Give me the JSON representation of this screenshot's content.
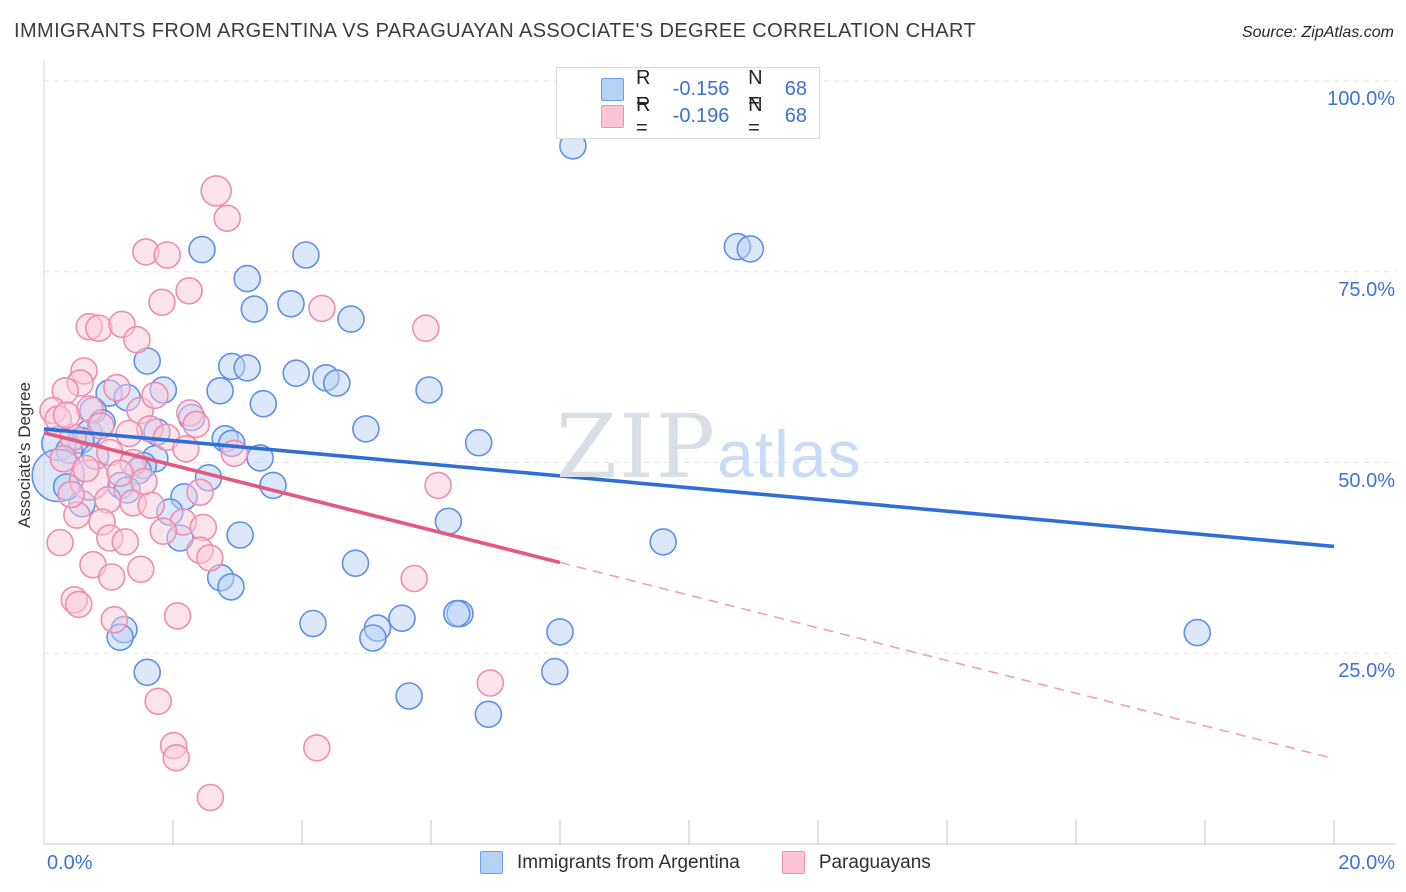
{
  "header": {
    "title": "IMMIGRANTS FROM ARGENTINA VS PARAGUAYAN ASSOCIATE'S DEGREE CORRELATION CHART",
    "source": "Source: ZipAtlas.com"
  },
  "y_axis": {
    "label": "Associate's Degree",
    "ticks": [
      "100.0%",
      "75.0%",
      "50.0%",
      "25.0%"
    ]
  },
  "x_axis": {
    "min_label": "0.0%",
    "max_label": "20.0%"
  },
  "legend_box": {
    "rows": [
      {
        "series": "Immigrants from Argentina",
        "r_label": "R =",
        "r_value": "-0.156",
        "n_label": "N =",
        "n_value": "68"
      },
      {
        "series": "Paraguayans",
        "r_label": "R =",
        "r_value": "-0.196",
        "n_label": "N =",
        "n_value": "68"
      }
    ]
  },
  "bottom_legend": [
    {
      "label": "Immigrants from Argentina"
    },
    {
      "label": "Paraguayans"
    }
  ],
  "watermark": {
    "zip": "ZIP",
    "atlas": "atlas"
  },
  "colors": {
    "blue_stroke": "#5f8fe8",
    "blue_fill": "#b7d2f4",
    "blue_trend": "#2e6fd6",
    "pink_stroke": "#f08cb0",
    "pink_fill": "#f9cadb",
    "pink_trend": "#e45880",
    "pink_trend_dashed": "#f0a0b8",
    "gridline": "#e3e3e3",
    "axis_line": "#c9c9c9",
    "tick_line": "#c4c4c4",
    "tick_text": "#3e73d4"
  },
  "chart_data": {
    "type": "scatter",
    "title": "IMMIGRANTS FROM ARGENTINA VS PARAGUAYAN ASSOCIATE'S DEGREE CORRELATION CHART",
    "xlabel": "Immigrants from Argentina (%)",
    "ylabel": "Associate's Degree (%)",
    "x_range": [
      0,
      20
    ],
    "y_range": [
      0,
      100
    ],
    "grid_y_values": [
      100,
      75,
      50,
      25
    ],
    "x_tick_step": 2,
    "legend_position": "bottom",
    "series": [
      {
        "name": "Immigrants from Argentina",
        "r": -0.156,
        "n": 68,
        "trend_solid": {
          "x1": 0,
          "y1": 54.4,
          "x2": 20.0,
          "y2": 39.0
        },
        "points": [
          [
            8.2,
            91.5
          ],
          [
            10.75,
            78.3
          ],
          [
            10.95,
            78.0
          ],
          [
            2.45,
            77.9
          ],
          [
            4.06,
            77.2
          ],
          [
            3.15,
            74.1
          ],
          [
            3.83,
            70.8
          ],
          [
            3.26,
            70.1
          ],
          [
            4.76,
            68.8
          ],
          [
            1.6,
            63.3
          ],
          [
            2.91,
            62.6
          ],
          [
            3.15,
            62.4
          ],
          [
            3.91,
            61.7
          ],
          [
            4.37,
            61.1
          ],
          [
            4.54,
            60.4
          ],
          [
            5.97,
            59.5
          ],
          [
            4.99,
            54.4
          ],
          [
            6.74,
            52.6
          ],
          [
            9.6,
            39.6
          ],
          [
            6.45,
            30.2
          ],
          [
            8.0,
            27.8
          ],
          [
            7.92,
            22.6
          ],
          [
            5.66,
            19.4
          ],
          [
            6.89,
            17.0
          ],
          [
            6.27,
            42.3
          ],
          [
            4.83,
            36.8
          ],
          [
            5.55,
            29.6
          ],
          [
            5.17,
            28.3
          ],
          [
            5.1,
            27.0
          ],
          [
            6.4,
            30.2
          ],
          [
            4.17,
            28.9
          ],
          [
            17.88,
            27.7
          ],
          [
            1.85,
            59.5
          ],
          [
            2.73,
            59.4
          ],
          [
            1.01,
            59.1
          ],
          [
            1.29,
            58.5
          ],
          [
            3.4,
            57.7
          ],
          [
            0.76,
            56.8
          ],
          [
            2.29,
            55.9
          ],
          [
            0.7,
            53.9
          ],
          [
            0.57,
            52.9
          ],
          [
            0.23,
            52.5,
            17
          ],
          [
            0.39,
            51.6
          ],
          [
            2.81,
            53.1
          ],
          [
            2.91,
            52.5
          ],
          [
            1.72,
            50.5
          ],
          [
            1.54,
            49.6
          ],
          [
            0.22,
            48.3,
            26
          ],
          [
            3.35,
            50.6
          ],
          [
            1.46,
            48.9
          ],
          [
            1.19,
            47.0
          ],
          [
            1.29,
            46.4
          ],
          [
            3.55,
            47.0
          ],
          [
            2.17,
            45.5
          ],
          [
            0.59,
            44.6
          ],
          [
            2.11,
            40.1
          ],
          [
            3.04,
            40.5
          ],
          [
            2.74,
            34.9
          ],
          [
            2.9,
            33.7
          ],
          [
            1.24,
            28.1
          ],
          [
            1.18,
            27.1
          ],
          [
            1.6,
            22.5
          ],
          [
            0.9,
            55.2
          ],
          [
            1.75,
            54.0
          ],
          [
            2.55,
            48.0
          ],
          [
            0.35,
            46.8
          ],
          [
            1.95,
            43.5
          ],
          [
            0.8,
            50.8
          ]
        ]
      },
      {
        "name": "Paraguayans",
        "r": -0.196,
        "n": 68,
        "trend_solid": {
          "x1": 0,
          "y1": 53.9,
          "x2": 8.0,
          "y2": 36.9
        },
        "trend_dashed": {
          "x1": 8.0,
          "y1": 36.9,
          "x2": 19.9,
          "y2": 11.4
        },
        "points": [
          [
            2.67,
            85.6,
            15
          ],
          [
            2.84,
            82.0
          ],
          [
            1.58,
            77.6
          ],
          [
            1.91,
            77.2
          ],
          [
            2.25,
            72.5
          ],
          [
            1.83,
            71.0
          ],
          [
            4.31,
            70.2
          ],
          [
            5.92,
            67.6
          ],
          [
            0.7,
            67.8
          ],
          [
            0.85,
            67.6
          ],
          [
            1.21,
            68.1
          ],
          [
            1.44,
            66.1
          ],
          [
            0.62,
            62.0
          ],
          [
            2.26,
            56.5
          ],
          [
            1.49,
            56.8
          ],
          [
            1.13,
            59.8
          ],
          [
            0.56,
            60.4
          ],
          [
            0.33,
            59.4
          ],
          [
            0.14,
            56.8
          ],
          [
            0.22,
            55.7
          ],
          [
            0.71,
            57.0
          ],
          [
            1.64,
            54.4
          ],
          [
            2.36,
            55.0
          ],
          [
            0.45,
            53.3
          ],
          [
            1.02,
            51.3
          ],
          [
            1.38,
            50.0
          ],
          [
            1.9,
            53.3
          ],
          [
            0.71,
            47.7,
            20
          ],
          [
            1.18,
            48.6
          ],
          [
            0.99,
            45.1
          ],
          [
            1.38,
            44.7
          ],
          [
            1.66,
            44.4
          ],
          [
            2.42,
            46.1
          ],
          [
            0.51,
            43.1
          ],
          [
            0.9,
            42.2
          ],
          [
            2.16,
            42.2
          ],
          [
            2.47,
            41.5
          ],
          [
            1.02,
            40.1
          ],
          [
            1.26,
            39.6
          ],
          [
            2.42,
            38.5
          ],
          [
            2.57,
            37.5
          ],
          [
            0.76,
            36.6
          ],
          [
            1.05,
            35.0
          ],
          [
            0.47,
            32.0
          ],
          [
            0.54,
            31.4
          ],
          [
            1.09,
            29.4
          ],
          [
            2.07,
            29.9
          ],
          [
            6.11,
            47.0
          ],
          [
            5.74,
            34.8
          ],
          [
            6.92,
            21.1
          ],
          [
            1.77,
            18.7
          ],
          [
            2.01,
            12.9
          ],
          [
            2.05,
            11.3
          ],
          [
            4.23,
            12.6
          ],
          [
            2.58,
            6.1
          ],
          [
            0.3,
            50.5
          ],
          [
            0.65,
            49.2
          ],
          [
            1.55,
            47.5
          ],
          [
            0.42,
            45.8
          ],
          [
            1.85,
            41.0
          ],
          [
            0.25,
            39.5
          ],
          [
            1.5,
            36.0
          ],
          [
            0.35,
            56.2
          ],
          [
            2.2,
            51.8
          ],
          [
            2.95,
            51.2
          ],
          [
            0.88,
            54.8
          ],
          [
            1.32,
            53.8
          ],
          [
            1.72,
            58.8
          ]
        ]
      }
    ]
  }
}
